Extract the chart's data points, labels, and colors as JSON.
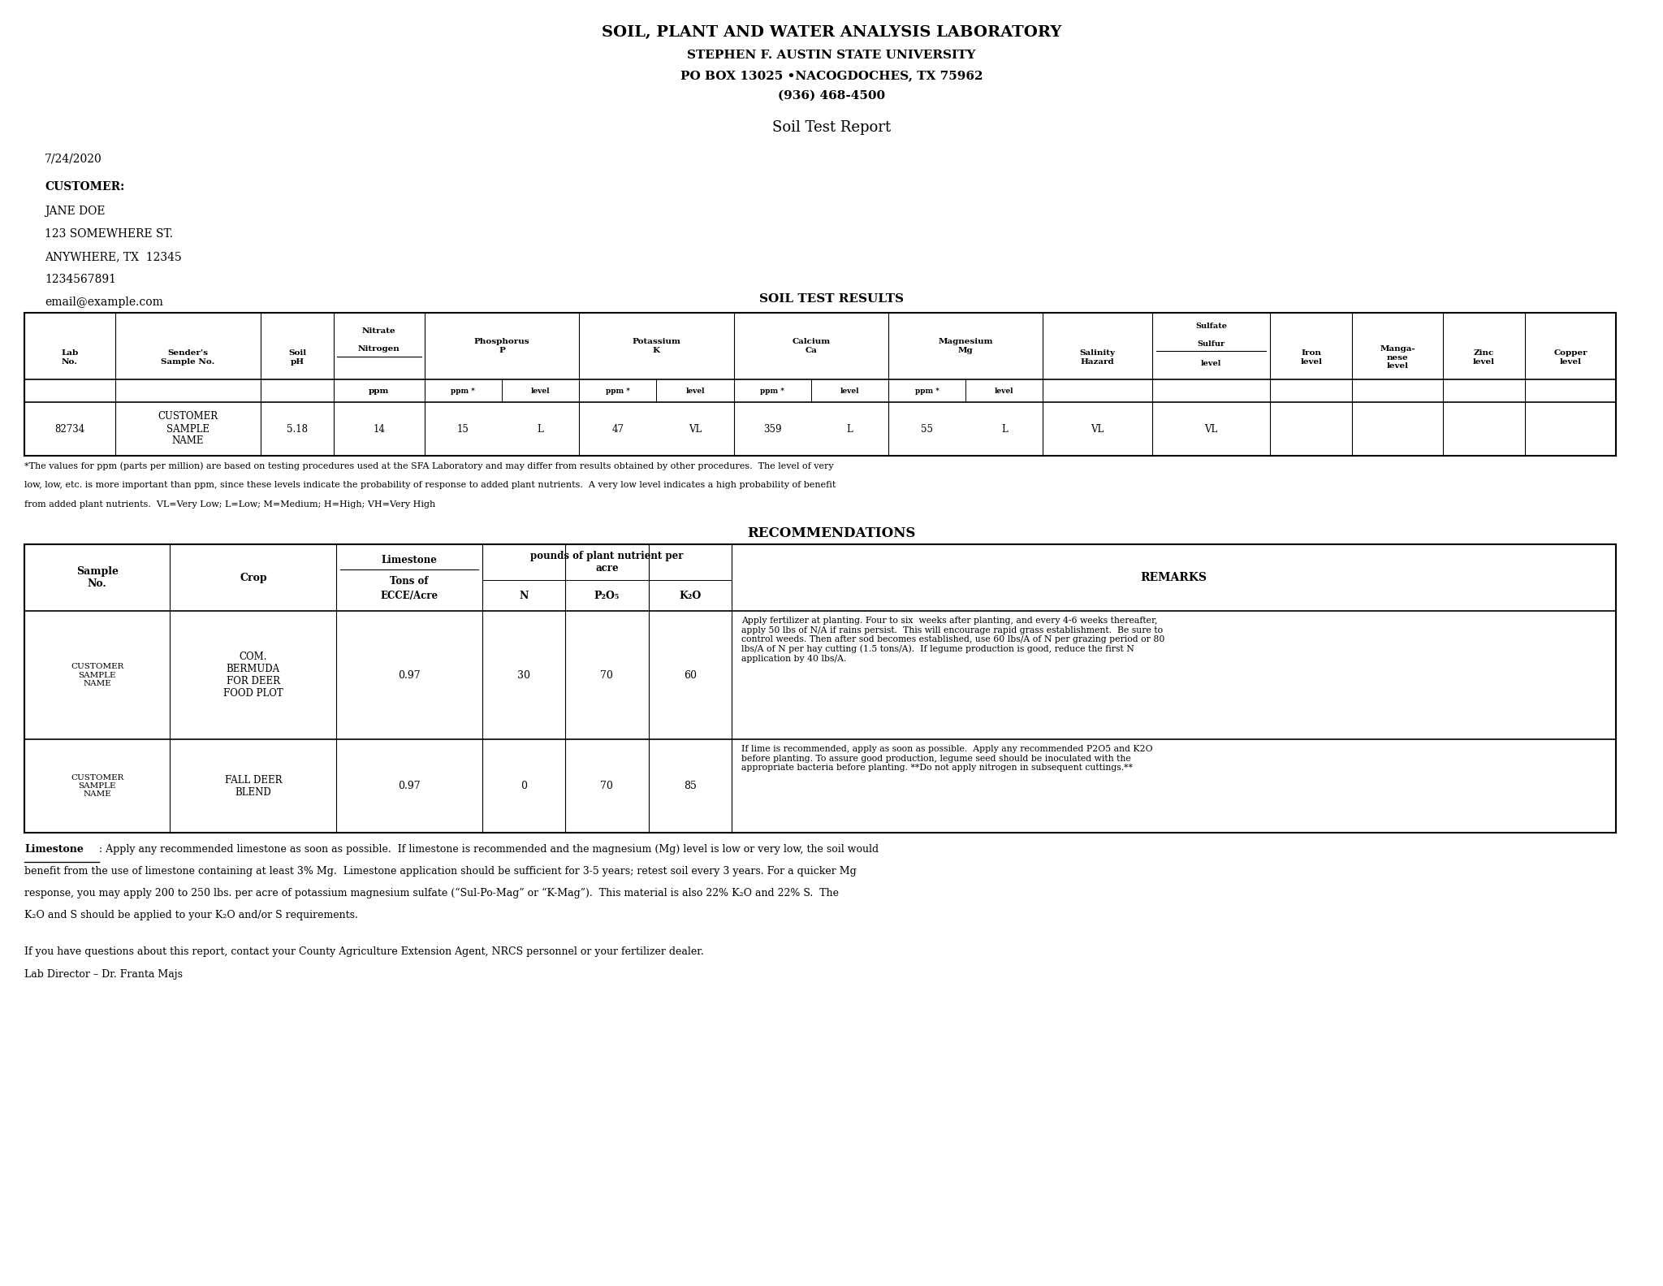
{
  "title_line1": "SOIL, PLANT AND WATER ANALYSIS LABORATORY",
  "title_line2": "STEPHEN F. AUSTIN STATE UNIVERSITY",
  "title_line3": "PO BOX 13025 •NACOGDOCHES, TX 75962",
  "title_line4": "(936) 468-4500",
  "subtitle": "Soil Test Report",
  "date": "7/24/2020",
  "customer_label": "CUSTOMER:",
  "customer_lines": [
    "JANE DOE",
    "123 SOMEWHERE ST.",
    "ANYWHERE, TX  12345",
    "1234567891",
    "email@example.com"
  ],
  "soil_test_results_title": "SOIL TEST RESULTS",
  "footnote_lines": [
    "*The values for ppm (parts per million) are based on testing procedures used at the SFA Laboratory and may differ from results obtained by other procedures.  The level of very",
    "low, low, etc. is more important than ppm, since these levels indicate the probability of response to added plant nutrients.  A very low level indicates a high probability of benefit",
    "from added plant nutrients.  VL=Very Low; L=Low; M=Medium; H=High; VH=Very High"
  ],
  "recommendations_title": "RECOMMENDATIONS",
  "rec_data": [
    {
      "sample": "CUSTOMER\nSAMPLE\nNAME",
      "crop": "COM.\nBERMUDA\nFOR DEER\nFOOD PLOT",
      "limestone": "0.97",
      "N": "30",
      "P2O5": "70",
      "K2O": "60",
      "remarks": "Apply fertilizer at planting. Four to six  weeks after planting, and every 4-6 weeks thereafter,\napply 50 lbs of N/A if rains persist.  This will encourage rapid grass establishment.  Be sure to\ncontrol weeds. Then after sod becomes established, use 60 lbs/A of N per grazing period or 80\nlbs/A of N per hay cutting (1.5 tons/A).  If legume production is good, reduce the first N\napplication by 40 lbs/A."
    },
    {
      "sample": "CUSTOMER\nSAMPLE\nNAME",
      "crop": "FALL DEER\nBLEND",
      "limestone": "0.97",
      "N": "0",
      "P2O5": "70",
      "K2O": "85",
      "remarks": "If lime is recommended, apply as soon as possible.  Apply any recommended P2O5 and K2O\nbefore planting. To assure good production, legume seed should be inoculated with the\nappropriate bacteria before planting. **Do not apply nitrogen in subsequent cuttings.**"
    }
  ],
  "limestone_note_parts": [
    ": Apply any recommended limestone as soon as possible.  If limestone is recommended and the magnesium (Mg) level is low or very low, the soil would",
    "benefit from the use of limestone containing at least 3% Mg.  Limestone application should be sufficient for 3-5 years; retest soil every 3 years. For a quicker Mg",
    "response, you may apply 200 to 250 lbs. per acre of potassium magnesium sulfate (“Sul-Po-Mag” or “K-Mag”).  This material is also 22% K₂O and 22% S.  The",
    "K₂O and S should be applied to your K₂O and/or S requirements."
  ],
  "contact_line": "If you have questions about this report, contact your County Agriculture Extension Agent, NRCS personnel or your fertilizer dealer.",
  "director_line": "Lab Director – Dr. Franta Majs",
  "bg_color": "#ffffff",
  "text_color": "#000000"
}
